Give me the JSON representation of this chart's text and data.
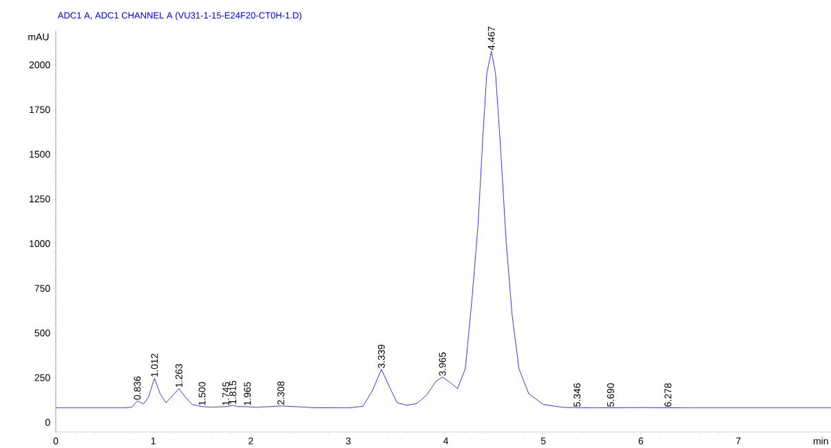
{
  "chart_data": {
    "type": "line",
    "title": "ADC1 A, ADC1 CHANNEL A (VU31-1-15-E24F20-CT0H-1.D)",
    "xlabel": "min",
    "ylabel": "mAU",
    "xlim": [
      0,
      7.95
    ],
    "ylim": [
      -55,
      2190
    ],
    "xticks": [
      0,
      1,
      2,
      3,
      4,
      5,
      6,
      7
    ],
    "yticks": [
      0,
      250,
      500,
      750,
      1000,
      1250,
      1500,
      1750,
      2000
    ],
    "grid": false,
    "marker": "none",
    "line_style": "solid",
    "series": [
      {
        "color": "#0000ff",
        "x": [
          0,
          0.7,
          0.78,
          0.836,
          0.9,
          0.95,
          1.012,
          1.07,
          1.13,
          1.2,
          1.263,
          1.33,
          1.4,
          1.5,
          1.6,
          1.75,
          1.815,
          1.87,
          1.965,
          2.05,
          2.2,
          2.308,
          2.45,
          2.65,
          3.0,
          3.15,
          3.25,
          3.339,
          3.42,
          3.5,
          3.6,
          3.7,
          3.8,
          3.9,
          3.965,
          4.05,
          4.12,
          4.2,
          4.27,
          4.33,
          4.38,
          4.42,
          4.467,
          4.51,
          4.56,
          4.62,
          4.68,
          4.75,
          4.85,
          5.0,
          5.2,
          5.5,
          6.0,
          6.5,
          7.95
        ],
        "values": [
          81,
          81,
          85,
          120,
          103,
          140,
          247,
          160,
          110,
          150,
          189,
          140,
          100,
          88,
          85,
          88,
          95,
          88,
          88,
          84,
          88,
          92,
          88,
          82,
          81,
          90,
          180,
          297,
          200,
          110,
          96,
          105,
          150,
          230,
          254,
          220,
          189,
          300,
          700,
          1100,
          1600,
          1950,
          2077,
          1950,
          1550,
          1000,
          600,
          300,
          160,
          100,
          84,
          81,
          83,
          81,
          81
        ]
      }
    ],
    "annotations": [
      {
        "text": "0.836",
        "x": 0.836,
        "y": 120
      },
      {
        "text": "1.012",
        "x": 1.012,
        "y": 247
      },
      {
        "text": "1.263",
        "x": 1.263,
        "y": 189
      },
      {
        "text": "1.500",
        "x": 1.5,
        "y": 88
      },
      {
        "text": "1.745",
        "x": 1.745,
        "y": 88
      },
      {
        "text": "1.815",
        "x": 1.815,
        "y": 95
      },
      {
        "text": "1.965",
        "x": 1.965,
        "y": 88
      },
      {
        "text": "2.308",
        "x": 2.308,
        "y": 92
      },
      {
        "text": "3.339",
        "x": 3.339,
        "y": 297
      },
      {
        "text": "3.965",
        "x": 3.965,
        "y": 254
      },
      {
        "text": "4.467",
        "x": 4.467,
        "y": 2077
      },
      {
        "text": "5.346",
        "x": 5.346,
        "y": 81
      },
      {
        "text": "5.690",
        "x": 5.69,
        "y": 81
      },
      {
        "text": "6.278",
        "x": 6.278,
        "y": 81
      }
    ]
  }
}
